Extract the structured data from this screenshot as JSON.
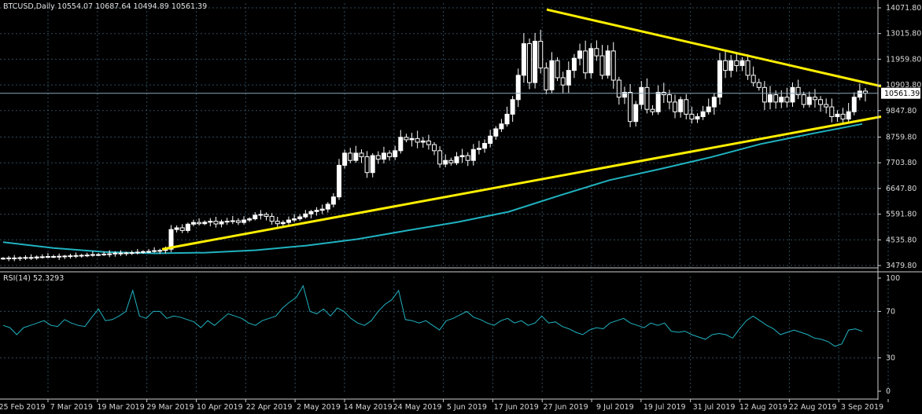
{
  "header": {
    "symbol_info": "BTCUSD,Daily  10554.07 10687.64 10494.89 10561.39",
    "rsi_label": "RSI(14) 52.3293"
  },
  "price_axis": {
    "ticks": [
      "14071.80",
      "13015.80",
      "11959.80",
      "10903.80",
      "9847.80",
      "8759.80",
      "7703.80",
      "6647.80",
      "5591.80",
      "4535.80",
      "3479.80"
    ],
    "last_price": "10561.39"
  },
  "rsi_axis": {
    "ticks": [
      "100",
      "70",
      "30",
      "0"
    ]
  },
  "time_axis": {
    "labels": [
      "25 Feb 2019",
      "7 Mar 2019",
      "19 Mar 2019",
      "29 Mar 2019",
      "10 Apr 2019",
      "22 Apr 2019",
      "2 May 2019",
      "14 May 2019",
      "24 May 2019",
      "5 Jun 2019",
      "17 Jun 2019",
      "27 Jun 2019",
      "9 Jul 2019",
      "19 Jul 2019",
      "31 Jul 2019",
      "12 Aug 2019",
      "22 Aug 2019",
      "3 Sep 2019"
    ]
  },
  "colors": {
    "background": "#000000",
    "grid": "#2e4a5a",
    "candle_up": "#ffffff",
    "candle_down": "#ffffff",
    "moving_average": "#20b2c0",
    "trendline": "#ffee00",
    "rsi_line": "#20b2c0",
    "price_line": "#8aa6b8"
  },
  "chart_data": {
    "type": "candlestick",
    "title": "BTCUSD,Daily",
    "ohlc_last": {
      "open": 10554.07,
      "high": 10687.64,
      "low": 10494.89,
      "close": 10561.39
    },
    "grid": true,
    "ylim": [
      3479.8,
      14071.8
    ],
    "close_series": [
      3780,
      3790,
      3770,
      3800,
      3810,
      3790,
      3830,
      3840,
      3850,
      3830,
      3860,
      3870,
      3880,
      3890,
      3900,
      3910,
      3930,
      3920,
      3950,
      3960,
      3990,
      3980,
      4000,
      4010,
      4030,
      4050,
      4060,
      4090,
      4100,
      4150,
      4960,
      5030,
      4920,
      5180,
      5250,
      5200,
      5260,
      5300,
      5190,
      5280,
      5300,
      5320,
      5250,
      5350,
      5400,
      5550,
      5580,
      5500,
      5300,
      5200,
      5250,
      5350,
      5400,
      5480,
      5600,
      5700,
      5750,
      5800,
      6000,
      6300,
      7600,
      8100,
      7800,
      8100,
      7950,
      7300,
      8000,
      7850,
      8100,
      7950,
      8200,
      8750,
      8650,
      8700,
      8550,
      8600,
      8450,
      8200,
      7650,
      7800,
      7700,
      7950,
      8000,
      7800,
      8250,
      8300,
      8500,
      8800,
      9100,
      9300,
      9700,
      10300,
      11300,
      12600,
      11000,
      12700,
      11600,
      10700,
      11900,
      11200,
      10900,
      11500,
      12000,
      12300,
      11400,
      12400,
      12100,
      11300,
      12300,
      11100,
      10400,
      10600,
      9400,
      10100,
      10800,
      9900,
      9800,
      10600,
      10500,
      10200,
      9800,
      10300,
      9700,
      9500,
      9600,
      9800,
      10000,
      10400,
      11900,
      11500,
      11900,
      11700,
      11900,
      11300,
      11000,
      10800,
      10200,
      10500,
      10200,
      10400,
      10200,
      10800,
      10500,
      10100,
      10400,
      10300,
      10100,
      10000,
      9600,
      9700,
      9500,
      9800,
      10400,
      10650,
      10561.39
    ],
    "moving_average": {
      "name": "",
      "values_sampled": [
        4440,
        4200,
        4040,
        3980,
        4010,
        4110,
        4300,
        4560,
        4920,
        5270,
        5690,
        6350,
        6990,
        7450,
        7930,
        8480,
        8900,
        9300
      ]
    },
    "trendlines": [
      {
        "from": [
          "29 Mar 2019",
          4150
        ],
        "to": [
          "3 Sep 2019",
          9600
        ]
      },
      {
        "from": [
          "24 Jun 2019",
          14000
        ],
        "to": [
          "3 Sep 2019",
          10850
        ]
      }
    ],
    "rsi": {
      "period": 14,
      "value": 52.3293,
      "levels": [
        30,
        70
      ],
      "sampled": [
        58,
        56,
        50,
        56,
        58,
        60,
        62,
        58,
        57,
        63,
        60,
        58,
        57,
        65,
        72,
        62,
        63,
        66,
        70,
        88,
        66,
        64,
        70,
        70,
        64,
        66,
        65,
        63,
        61,
        56,
        62,
        58,
        63,
        68,
        66,
        64,
        60,
        58,
        62,
        64,
        66,
        73,
        78,
        82,
        92,
        70,
        68,
        72,
        66,
        73,
        70,
        64,
        60,
        58,
        62,
        70,
        76,
        80,
        88,
        63,
        62,
        60,
        62,
        58,
        54,
        62,
        64,
        67,
        70,
        65,
        63,
        60,
        58,
        62,
        64,
        60,
        62,
        58,
        60,
        66,
        60,
        61,
        57,
        55,
        52,
        50,
        54,
        56,
        55,
        60,
        62,
        64,
        60,
        58,
        56,
        60,
        58,
        60,
        53,
        52,
        53,
        50,
        48,
        46,
        50,
        51,
        50,
        47,
        55,
        62,
        66,
        62,
        58,
        55,
        50,
        52,
        54,
        52,
        50,
        47,
        46,
        44,
        40,
        42,
        54,
        55,
        53
      ]
    }
  }
}
